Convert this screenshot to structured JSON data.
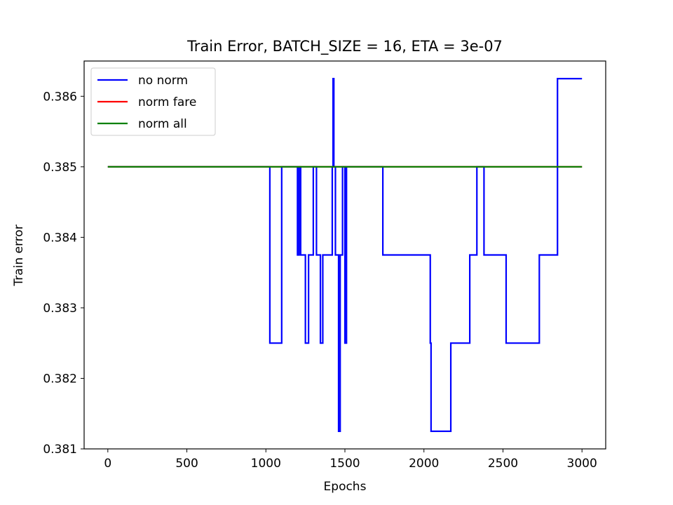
{
  "chart_data": {
    "type": "line",
    "title": "Train Error, BATCH_SIZE = 16, ETA = 3e-07",
    "xlabel": "Epochs",
    "ylabel": "Train error",
    "xlim": [
      -150,
      3150
    ],
    "ylim": [
      0.381,
      0.3865
    ],
    "xticks": [
      0,
      500,
      1000,
      1500,
      2000,
      2500,
      3000
    ],
    "xtick_labels": [
      "0",
      "500",
      "1000",
      "1500",
      "2000",
      "2500",
      "3000"
    ],
    "yticks": [
      0.381,
      0.382,
      0.383,
      0.384,
      0.385,
      0.386
    ],
    "ytick_labels": [
      "0.381",
      "0.382",
      "0.383",
      "0.384",
      "0.385",
      "0.386"
    ],
    "legend_position": "top-left",
    "grid": false,
    "series": [
      {
        "name": "no norm",
        "color": "#0000ff",
        "step": true,
        "x": [
          0,
          1025,
          1100,
          1200,
          1210,
          1220,
          1250,
          1270,
          1300,
          1310,
          1320,
          1345,
          1360,
          1420,
          1425,
          1430,
          1440,
          1460,
          1470,
          1485,
          1500,
          1510,
          1525,
          1740,
          2040,
          2045,
          2170,
          2290,
          2335,
          2380,
          2520,
          2730,
          2845,
          3000
        ],
        "y": [
          0.385,
          0.3825,
          0.385,
          0.38375,
          0.385,
          0.38375,
          0.3825,
          0.38375,
          0.385,
          0.385,
          0.38375,
          0.3825,
          0.38375,
          0.385,
          0.38625,
          0.385,
          0.38375,
          0.38125,
          0.38375,
          0.385,
          0.3825,
          0.385,
          0.385,
          0.38375,
          0.3825,
          0.38125,
          0.3825,
          0.38375,
          0.385,
          0.38375,
          0.3825,
          0.38375,
          0.38625,
          0.38625
        ]
      },
      {
        "name": "norm fare",
        "color": "#ff0000",
        "step": true,
        "x": [
          0,
          3000
        ],
        "y": [
          0.385,
          0.385
        ]
      },
      {
        "name": "norm all",
        "color": "#008000",
        "step": true,
        "x": [
          0,
          3000
        ],
        "y": [
          0.385,
          0.385
        ]
      }
    ]
  }
}
